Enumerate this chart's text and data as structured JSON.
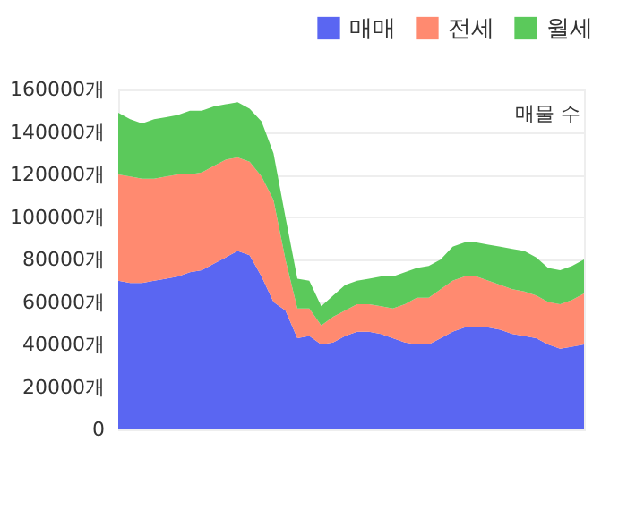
{
  "chart_data": {
    "type": "area",
    "stacked": true,
    "annotations": [
      "매물 수"
    ],
    "categories": [
      null,
      null,
      null,
      null,
      null,
      null,
      null,
      null,
      null,
      null,
      null,
      null,
      null,
      null,
      null,
      null,
      null,
      null,
      null,
      null,
      null,
      null,
      null,
      null,
      null,
      null,
      null,
      null,
      null,
      null,
      null,
      null,
      null,
      null,
      null,
      null,
      null,
      null,
      null,
      null
    ],
    "series": [
      {
        "name": "매매",
        "color": "#5a66f2",
        "values": [
          70000,
          69000,
          69000,
          70000,
          71000,
          72000,
          74000,
          75000,
          78000,
          81000,
          84000,
          82000,
          72000,
          60000,
          56000,
          43000,
          44000,
          40000,
          41000,
          44000,
          46000,
          46000,
          45000,
          43000,
          41000,
          40000,
          40000,
          43000,
          46000,
          48000,
          48000,
          48000,
          47000,
          45000,
          44000,
          43000,
          40000,
          38000,
          39000,
          40000
        ]
      },
      {
        "name": "전세",
        "color": "#ff8a70",
        "values": [
          50000,
          50000,
          49000,
          48000,
          48000,
          48000,
          46000,
          46000,
          46000,
          46000,
          44000,
          44000,
          47000,
          48000,
          24000,
          14000,
          13000,
          9000,
          12000,
          12000,
          13000,
          13000,
          13000,
          14000,
          18000,
          22000,
          22000,
          23000,
          24000,
          24000,
          24000,
          22000,
          21000,
          21000,
          21000,
          20000,
          20000,
          21000,
          22000,
          24000
        ]
      },
      {
        "name": "월세",
        "color": "#5bc95b",
        "values": [
          29000,
          27000,
          26000,
          28000,
          28000,
          28000,
          30000,
          29000,
          28000,
          26000,
          26000,
          25000,
          26000,
          22000,
          20000,
          14000,
          13000,
          9000,
          10000,
          12000,
          11000,
          12000,
          14000,
          15000,
          15000,
          14000,
          15000,
          14000,
          16000,
          16000,
          16000,
          17000,
          18000,
          19000,
          19000,
          18000,
          16000,
          16000,
          16000,
          16000
        ]
      }
    ],
    "ylim": [
      0,
      160000
    ],
    "yticks": [
      0,
      {
        "value": 20000,
        "label": "20000개"
      },
      {
        "value": 40000,
        "label": "40000개"
      },
      {
        "value": 60000,
        "label": "60000개"
      },
      {
        "value": 80000,
        "label": "80000개"
      },
      {
        "value": 100000,
        "label": "100000개"
      },
      {
        "value": 120000,
        "label": "120000개"
      },
      {
        "value": 140000,
        "label": "140000개"
      },
      {
        "value": 160000,
        "label": "160000개"
      }
    ],
    "grid": "y",
    "legend": "top right",
    "tick_labels": "y"
  }
}
